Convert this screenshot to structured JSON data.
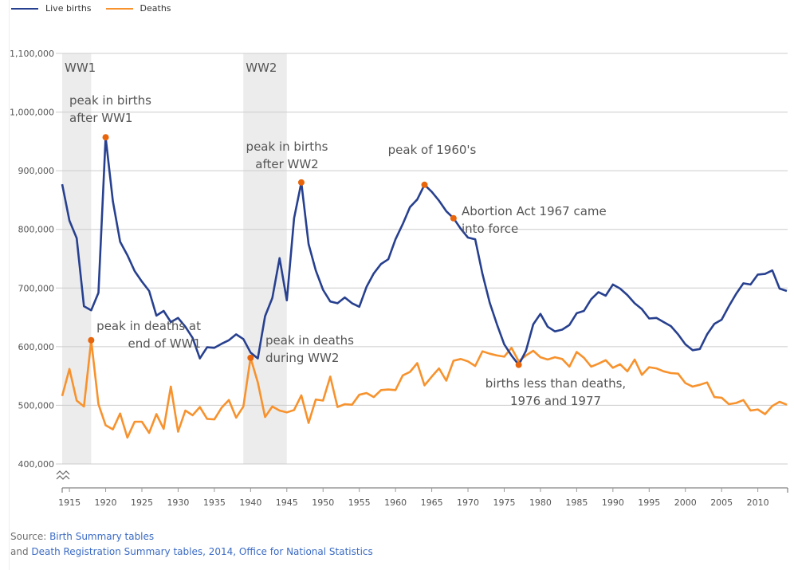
{
  "legend": [
    {
      "label": "Live births",
      "color": "#27408f"
    },
    {
      "label": "Deaths",
      "color": "#f7922d"
    }
  ],
  "source": {
    "prefix": "Source: ",
    "link1": "Birth Summary tables",
    "line2_prefix": "and ",
    "link2": "Death Registration Summary tables, 2014, Office for National Statistics"
  },
  "chart_data": {
    "type": "line",
    "title": "",
    "xlabel": "",
    "ylabel": "",
    "xlim": [
      1914,
      2014
    ],
    "ylim": [
      400000,
      1100000
    ],
    "grid": true,
    "legend_position": "top-left",
    "axis_break": true,
    "x_ticks": [
      1915,
      1920,
      1925,
      1930,
      1935,
      1940,
      1945,
      1950,
      1955,
      1960,
      1965,
      1970,
      1975,
      1980,
      1985,
      1990,
      1995,
      2000,
      2005,
      2010
    ],
    "y_ticks": [
      400000,
      500000,
      600000,
      700000,
      800000,
      900000,
      1000000,
      1100000
    ],
    "y_tick_labels": [
      "400,000",
      "500,000",
      "600,000",
      "700,000",
      "800,000",
      "900,000",
      "1,000,000",
      "1,100,000"
    ],
    "x": [
      1914,
      1915,
      1916,
      1917,
      1918,
      1919,
      1920,
      1921,
      1922,
      1923,
      1924,
      1925,
      1926,
      1927,
      1928,
      1929,
      1930,
      1931,
      1932,
      1933,
      1934,
      1935,
      1936,
      1937,
      1938,
      1939,
      1940,
      1941,
      1942,
      1943,
      1944,
      1945,
      1946,
      1947,
      1948,
      1949,
      1950,
      1951,
      1952,
      1953,
      1954,
      1955,
      1956,
      1957,
      1958,
      1959,
      1960,
      1961,
      1962,
      1963,
      1964,
      1965,
      1966,
      1967,
      1968,
      1969,
      1970,
      1971,
      1972,
      1973,
      1974,
      1975,
      1976,
      1977,
      1978,
      1979,
      1980,
      1981,
      1982,
      1983,
      1984,
      1985,
      1986,
      1987,
      1988,
      1989,
      1990,
      1991,
      1992,
      1993,
      1994,
      1995,
      1996,
      1997,
      1998,
      1999,
      2000,
      2001,
      2002,
      2003,
      2004,
      2005,
      2006,
      2007,
      2008,
      2009,
      2010,
      2011,
      2012,
      2013,
      2014
    ],
    "series": [
      {
        "name": "Live births",
        "color": "#27408f",
        "values": [
          877000,
          815000,
          785000,
          669000,
          662000,
          692000,
          957000,
          848000,
          779000,
          756000,
          729000,
          711000,
          695000,
          653000,
          661000,
          642000,
          649000,
          634000,
          615000,
          580000,
          599000,
          598000,
          605000,
          611000,
          621000,
          613000,
          590000,
          580000,
          652000,
          683000,
          751000,
          679000,
          819000,
          880000,
          775000,
          730000,
          697000,
          677000,
          674000,
          684000,
          674000,
          668000,
          702000,
          725000,
          741000,
          749000,
          783000,
          809000,
          838000,
          851000,
          876000,
          864000,
          849000,
          831000,
          819000,
          801000,
          786000,
          783000,
          724000,
          675000,
          638000,
          604000,
          585000,
          569000,
          593000,
          638000,
          656000,
          634000,
          626000,
          629000,
          637000,
          657000,
          661000,
          681000,
          693000,
          687000,
          706000,
          699000,
          688000,
          674000,
          664000,
          648000,
          649000,
          642000,
          635000,
          621000,
          604000,
          594000,
          596000,
          621000,
          639000,
          646000,
          669000,
          690000,
          708000,
          706000,
          723000,
          724000,
          730000,
          699000,
          695000
        ]
      },
      {
        "name": "Deaths",
        "color": "#f7922d",
        "values": [
          516000,
          562000,
          508000,
          498000,
          611000,
          502000,
          466000,
          459000,
          486000,
          445000,
          472000,
          472000,
          453000,
          485000,
          460000,
          532000,
          455000,
          491000,
          483000,
          497000,
          477000,
          476000,
          496000,
          509000,
          479000,
          498000,
          581000,
          539000,
          480000,
          498000,
          491000,
          488000,
          492000,
          517000,
          470000,
          510000,
          508000,
          549000,
          497000,
          502000,
          501000,
          518000,
          521000,
          514000,
          526000,
          527000,
          526000,
          551000,
          557000,
          572000,
          534000,
          549000,
          563000,
          542000,
          576000,
          579000,
          575000,
          567000,
          592000,
          588000,
          585000,
          583000,
          598000,
          575000,
          585000,
          593000,
          582000,
          578000,
          582000,
          579000,
          566000,
          591000,
          581000,
          566000,
          571000,
          577000,
          564000,
          570000,
          558000,
          578000,
          552000,
          565000,
          563000,
          558000,
          555000,
          554000,
          538000,
          532000,
          535000,
          539000,
          514000,
          513000,
          502000,
          504000,
          509000,
          491000,
          493000,
          485000,
          499000,
          506000,
          501000
        ]
      }
    ],
    "shaded_periods": [
      {
        "label": "WW1",
        "start": 1914,
        "end": 1918
      },
      {
        "label": "WW2",
        "start": 1939,
        "end": 1945
      }
    ],
    "highlight_points": [
      {
        "series": "Live births",
        "year": 1920,
        "value": 957000
      },
      {
        "series": "Deaths",
        "year": 1918,
        "value": 611000
      },
      {
        "series": "Deaths",
        "year": 1940,
        "value": 581000
      },
      {
        "series": "Live births",
        "year": 1947,
        "value": 880000
      },
      {
        "series": "Live births",
        "year": 1964,
        "value": 876000
      },
      {
        "series": "Live births",
        "year": 1968,
        "value": 819000
      },
      {
        "series": "Live births",
        "year": 1977,
        "value": 569000
      }
    ],
    "annotations": [
      {
        "lines": [
          "peak in births",
          "after WW1"
        ],
        "year": 1920
      },
      {
        "lines": [
          "peak in deaths at",
          "end of WW1"
        ],
        "year": 1918
      },
      {
        "lines": [
          "peak in births",
          "after WW2"
        ],
        "year": 1947
      },
      {
        "lines": [
          "peak in deaths",
          "during WW2"
        ],
        "year": 1940
      },
      {
        "lines": [
          "peak of 1960's"
        ],
        "year": 1964
      },
      {
        "lines": [
          "Abortion Act 1967 came",
          "into force"
        ],
        "year": 1968
      },
      {
        "lines": [
          "births less than deaths,",
          "1976 and 1977"
        ],
        "year": 1977
      }
    ],
    "marker_color": "#e8650c"
  }
}
